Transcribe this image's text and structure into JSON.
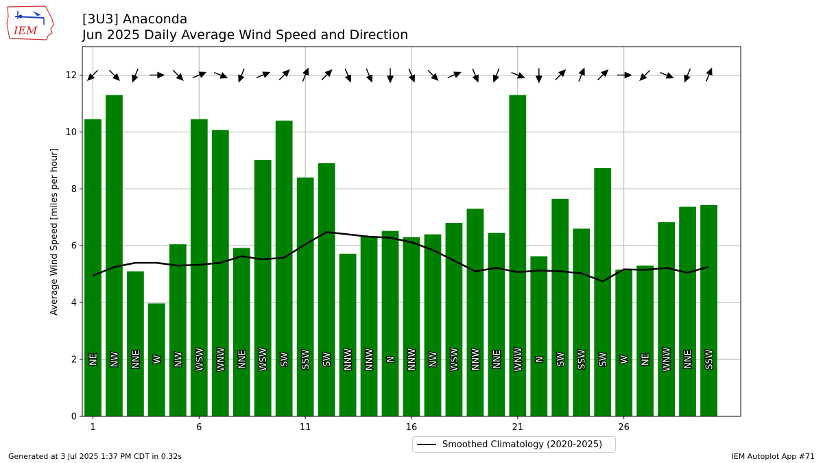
{
  "header": {
    "title_line1": "[3U3] Anaconda",
    "title_line2": "Jun 2025 Daily Average Wind Speed and Direction"
  },
  "logo": {
    "text": "IEM",
    "icon": "iem-iowa-logo-icon"
  },
  "footer": {
    "generated": "Generated at 3 Jul 2025 1:37 PM CDT in 0.32s",
    "app": "IEM Autoplot App #71"
  },
  "colors": {
    "bar": "#008000",
    "line": "#000000",
    "grid": "#b0b0b0"
  },
  "chart_data": {
    "type": "bar",
    "ylabel": "Average Wind Speed [miles per hour]",
    "xlabel": "",
    "ylim": [
      0,
      13
    ],
    "xlim": [
      0.5,
      31.5
    ],
    "xticks": [
      1,
      6,
      11,
      16,
      21,
      26
    ],
    "yticks": [
      0,
      2,
      4,
      6,
      8,
      10,
      12
    ],
    "grid": true,
    "legend_position": "below-center",
    "days": [
      1,
      2,
      3,
      4,
      5,
      6,
      7,
      8,
      9,
      10,
      11,
      12,
      13,
      14,
      15,
      16,
      17,
      18,
      19,
      20,
      21,
      22,
      23,
      24,
      25,
      26,
      27,
      28,
      29,
      30
    ],
    "series": [
      {
        "name": "",
        "type": "bar",
        "values": [
          10.45,
          11.3,
          5.1,
          3.97,
          6.05,
          10.45,
          10.07,
          5.92,
          9.02,
          10.4,
          8.4,
          8.9,
          5.72,
          6.33,
          6.52,
          6.3,
          6.4,
          6.8,
          7.3,
          6.45,
          11.3,
          5.63,
          7.65,
          6.6,
          8.73,
          5.16,
          5.3,
          6.83,
          7.37,
          7.43
        ]
      },
      {
        "name": "Smoothed Climatology (2020-2025)",
        "type": "line",
        "values": [
          4.95,
          5.25,
          5.4,
          5.4,
          5.3,
          5.33,
          5.4,
          5.63,
          5.52,
          5.58,
          6.05,
          6.48,
          6.4,
          6.32,
          6.28,
          6.12,
          5.85,
          5.48,
          5.1,
          5.22,
          5.07,
          5.13,
          5.1,
          5.03,
          4.75,
          5.17,
          5.15,
          5.22,
          5.05,
          5.26
        ]
      }
    ],
    "directions": [
      "NE",
      "NW",
      "NNE",
      "W",
      "NW",
      "WSW",
      "WNW",
      "NNE",
      "WSW",
      "SW",
      "SSW",
      "SW",
      "NNW",
      "NNW",
      "N",
      "NNW",
      "NW",
      "WSW",
      "NNW",
      "NNE",
      "WNW",
      "N",
      "SW",
      "SSW",
      "SW",
      "W",
      "NE",
      "WNW",
      "NNE",
      "SSW"
    ],
    "arrow_directions": [
      "NE",
      "NW",
      "NNE",
      "W",
      "NW",
      "WSW",
      "WNW",
      "NNE",
      "WSW",
      "SW",
      "SSW",
      "SW",
      "NNW",
      "NNW",
      "N",
      "NNW",
      "NW",
      "WSW",
      "NNW",
      "NNE",
      "WNW",
      "N",
      "SW",
      "SSW",
      "SW",
      "W",
      "NE",
      "WNW",
      "NNE",
      "SSW"
    ]
  }
}
